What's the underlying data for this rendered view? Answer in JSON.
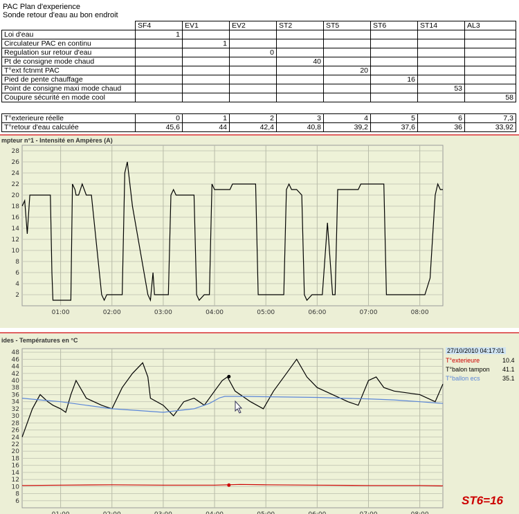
{
  "header": {
    "title": "PAC Plan d'experience",
    "subtitle": "Sonde retour d'eau au bon endroit"
  },
  "param_table": {
    "columns": [
      "SF4",
      "EV1",
      "EV2",
      "ST2",
      "ST5",
      "ST6",
      "ST14",
      "AL3"
    ],
    "rows": [
      {
        "label": "Loi d'eau",
        "col": 0,
        "value": "1"
      },
      {
        "label": "Circulateur PAC en continu",
        "col": 1,
        "value": "1"
      },
      {
        "label": "Regulation sur retour d'eau",
        "col": 2,
        "value": "0"
      },
      {
        "label": "Pt de consigne mode chaud",
        "col": 3,
        "value": "40"
      },
      {
        "label": "T°ext fctnmt PAC",
        "col": 4,
        "value": "20"
      },
      {
        "label": "Pied de pente chauffage",
        "col": 5,
        "value": "16"
      },
      {
        "label": "Point de consigne maxi mode chaud",
        "col": 6,
        "value": "53"
      },
      {
        "label": "Coupure sécurité en mode cool",
        "col": 7,
        "value": "58"
      }
    ]
  },
  "temp_table": {
    "rows": [
      {
        "label": "T°exterieure réelle",
        "values": [
          "0",
          "1",
          "2",
          "3",
          "4",
          "5",
          "6",
          "7,3"
        ]
      },
      {
        "label": "T°retour d'eau calculée",
        "values": [
          "45,6",
          "44",
          "42,4",
          "40,8",
          "39,2",
          "37,6",
          "36",
          "33,92"
        ]
      }
    ]
  },
  "chart1_title": "mpteur n°1 - Intensité en Ampères (A)",
  "chart2_title": "ides - Températures en °C",
  "legend": {
    "timestamp": "27/10/2010 04:17:01",
    "items": [
      {
        "name": "T°exterieure",
        "value": "10.4",
        "color": "#cc0000"
      },
      {
        "name": "T°balon tampon",
        "value": "41.1",
        "color": "#000000"
      },
      {
        "name": "T°ballon ecs",
        "value": "35.1",
        "color": "#5a86d8"
      }
    ]
  },
  "annotation": "ST6=16",
  "chart_data": [
    {
      "type": "line",
      "title": "mpteur n°1 - Intensité en Ampères (A)",
      "x_ticks": [
        "01:00",
        "02:00",
        "03:00",
        "04:00",
        "05:00",
        "06:00",
        "07:00",
        "08:00"
      ],
      "xlim": [
        0.25,
        8.45
      ],
      "ylim": [
        0,
        29
      ],
      "y_ticks": [
        2,
        4,
        6,
        8,
        10,
        12,
        14,
        16,
        18,
        20,
        22,
        24,
        26,
        28
      ],
      "grid": true,
      "series": [
        {
          "color": "#000000",
          "x": [
            0.25,
            0.3,
            0.35,
            0.4,
            0.45,
            0.5,
            0.8,
            0.83,
            0.85,
            0.9,
            1.2,
            1.23,
            1.28,
            1.3,
            1.35,
            1.42,
            1.5,
            1.55,
            1.6,
            1.8,
            1.85,
            1.9,
            2.2,
            2.25,
            2.3,
            2.4,
            2.7,
            2.75,
            2.8,
            2.83,
            2.85,
            2.9,
            3.0,
            3.1,
            3.15,
            3.2,
            3.25,
            3.3,
            3.6,
            3.65,
            3.7,
            3.8,
            3.9,
            3.95,
            4.0,
            4.3,
            4.35,
            4.4,
            4.8,
            4.85,
            4.9,
            5.35,
            5.4,
            5.45,
            5.5,
            5.6,
            5.7,
            5.75,
            5.8,
            5.9,
            6.1,
            6.2,
            6.3,
            6.35,
            6.4,
            6.8,
            6.85,
            6.9,
            7.3,
            7.35,
            7.4,
            8.1,
            8.2,
            8.3,
            8.35,
            8.4,
            8.45
          ],
          "y": [
            18,
            19,
            13,
            20,
            20,
            20,
            20,
            6,
            1,
            1,
            1,
            22,
            21,
            20,
            20,
            22,
            20,
            20,
            20,
            2,
            1,
            2,
            2,
            24,
            26,
            18,
            2,
            1,
            6,
            2,
            2,
            2,
            2,
            2,
            20,
            21,
            20,
            20,
            20,
            2,
            1,
            2,
            2,
            22,
            21,
            21,
            22,
            22,
            22,
            2,
            2,
            2,
            21,
            22,
            21,
            21,
            20,
            2,
            1,
            2,
            2,
            15,
            2,
            2,
            21,
            21,
            22,
            22,
            22,
            2,
            2,
            2,
            5,
            20,
            22,
            21,
            21
          ]
        }
      ]
    },
    {
      "type": "line",
      "title": "ides - Températures en °C",
      "x_ticks": [
        "01:00",
        "02:00",
        "03:00",
        "04:00",
        "05:00",
        "06:00",
        "07:00",
        "08:00"
      ],
      "xlim": [
        0.25,
        8.45
      ],
      "ylim": [
        4,
        49
      ],
      "y_ticks": [
        6,
        8,
        10,
        12,
        14,
        16,
        18,
        20,
        22,
        24,
        26,
        28,
        30,
        32,
        34,
        36,
        38,
        40,
        42,
        44,
        46,
        48
      ],
      "grid": true,
      "series": [
        {
          "name": "T°balon tampon",
          "color": "#000000",
          "x": [
            0.25,
            0.35,
            0.45,
            0.6,
            0.75,
            0.85,
            1.0,
            1.1,
            1.2,
            1.3,
            1.5,
            1.8,
            2.0,
            2.2,
            2.4,
            2.6,
            2.7,
            2.75,
            3.0,
            3.2,
            3.4,
            3.6,
            3.8,
            4.0,
            4.15,
            4.25,
            4.4,
            4.7,
            4.95,
            5.15,
            5.4,
            5.6,
            5.8,
            6.0,
            6.3,
            6.6,
            6.8,
            7.0,
            7.15,
            7.3,
            7.5,
            8.0,
            8.3,
            8.45
          ],
          "y": [
            24,
            28,
            32,
            36,
            34,
            33,
            32,
            31,
            36,
            40,
            35,
            33,
            32,
            38,
            42,
            45,
            41,
            35,
            33,
            30,
            34,
            35,
            33,
            37,
            40,
            41,
            37,
            34,
            32,
            37,
            42,
            46,
            41,
            38,
            36,
            34,
            33,
            40,
            41,
            38,
            37,
            36,
            34,
            39
          ]
        },
        {
          "name": "T°ballon ecs",
          "color": "#5a86d8",
          "x": [
            0.25,
            0.6,
            1.0,
            1.5,
            2.0,
            2.5,
            3.0,
            3.3,
            3.6,
            3.9,
            4.1,
            4.2,
            4.35,
            4.6,
            5.0,
            5.5,
            6.0,
            6.5,
            7.0,
            7.5,
            8.0,
            8.45
          ],
          "y": [
            35,
            34.5,
            34,
            33,
            32,
            31.5,
            31,
            31.5,
            32,
            33.5,
            35.1,
            35.5,
            35.5,
            35.5,
            35.4,
            35.3,
            35.2,
            35,
            34.8,
            34.5,
            34,
            33.5
          ]
        },
        {
          "name": "T°exterieure",
          "color": "#cc0000",
          "x": [
            0.25,
            1.0,
            2.0,
            3.0,
            4.0,
            4.5,
            5.0,
            6.0,
            7.0,
            8.0,
            8.45
          ],
          "y": [
            10.3,
            10.4,
            10.5,
            10.4,
            10.4,
            10.6,
            10.5,
            10.4,
            10.3,
            10.3,
            10.2
          ]
        }
      ],
      "markers": [
        {
          "series": "T°balon tampon",
          "x": 4.28,
          "y": 41.1
        },
        {
          "series": "T°exterieure",
          "x": 4.28,
          "y": 10.4
        }
      ]
    }
  ]
}
